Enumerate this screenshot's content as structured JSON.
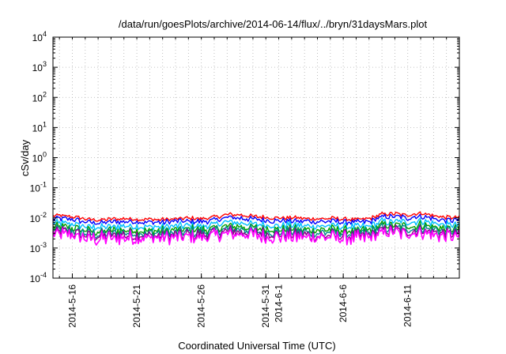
{
  "chart_data": {
    "type": "line",
    "title": "/data/run/goesPlots/archive/2014-06-14/flux/../bryn/31daysMars.plot",
    "xlabel": "Coordinated Universal Time (UTC)",
    "ylabel": "cSv/day",
    "y_scale": "log",
    "ylim": [
      0.0001,
      10000
    ],
    "y_ticks": [
      {
        "value": 0.0001,
        "base": "10",
        "exp": "-4"
      },
      {
        "value": 0.001,
        "base": "10",
        "exp": "-3"
      },
      {
        "value": 0.01,
        "base": "10",
        "exp": "-2"
      },
      {
        "value": 0.1,
        "base": "10",
        "exp": "-1"
      },
      {
        "value": 1,
        "base": "10",
        "exp": "0"
      },
      {
        "value": 10,
        "base": "10",
        "exp": "1"
      },
      {
        "value": 100,
        "base": "10",
        "exp": "2"
      },
      {
        "value": 1000,
        "base": "10",
        "exp": "3"
      },
      {
        "value": 10000,
        "base": "10",
        "exp": "4"
      }
    ],
    "xlim": [
      "2014-05-14T12:00",
      "2014-06-15T00:00"
    ],
    "x_ticks": [
      {
        "date": "2014-05-16",
        "label": "2014-5-16"
      },
      {
        "date": "2014-05-21",
        "label": "2014-5-21"
      },
      {
        "date": "2014-05-26",
        "label": "2014-5-26"
      },
      {
        "date": "2014-05-31",
        "label": "2014-5-31"
      },
      {
        "date": "2014-06-01",
        "label": "2014-6-1"
      },
      {
        "date": "2014-06-06",
        "label": "2014-6-6"
      },
      {
        "date": "2014-06-11",
        "label": "2014-6-11"
      }
    ],
    "grid": true,
    "x": [
      "2014-05-14",
      "2014-05-15",
      "2014-05-16",
      "2014-05-17",
      "2014-05-18",
      "2014-05-19",
      "2014-05-20",
      "2014-05-21",
      "2014-05-22",
      "2014-05-23",
      "2014-05-24",
      "2014-05-25",
      "2014-05-26",
      "2014-05-27",
      "2014-05-28",
      "2014-05-29",
      "2014-05-30",
      "2014-05-31",
      "2014-06-01",
      "2014-06-02",
      "2014-06-03",
      "2014-06-04",
      "2014-06-05",
      "2014-06-06",
      "2014-06-07",
      "2014-06-08",
      "2014-06-09",
      "2014-06-10",
      "2014-06-11",
      "2014-06-12",
      "2014-06-13",
      "2014-06-14"
    ],
    "series": [
      {
        "color": "#ff0000",
        "values": [
          0.011,
          0.012,
          0.011,
          0.009,
          0.0085,
          0.009,
          0.0095,
          0.0092,
          0.009,
          0.0088,
          0.0093,
          0.0098,
          0.0094,
          0.0105,
          0.0128,
          0.0124,
          0.0113,
          0.0105,
          0.0098,
          0.0102,
          0.0096,
          0.0094,
          0.0097,
          0.0091,
          0.0088,
          0.0093,
          0.0132,
          0.0136,
          0.0125,
          0.0146,
          0.0118,
          0.0102
        ]
      },
      {
        "color": "#0000ff",
        "values": [
          0.0088,
          0.0095,
          0.0088,
          0.0072,
          0.0069,
          0.0072,
          0.0076,
          0.0074,
          0.0072,
          0.0071,
          0.0075,
          0.0078,
          0.0076,
          0.0084,
          0.0103,
          0.01,
          0.0091,
          0.0084,
          0.0079,
          0.0082,
          0.0078,
          0.0076,
          0.0078,
          0.0073,
          0.0071,
          0.0075,
          0.0106,
          0.011,
          0.01,
          0.0117,
          0.0095,
          0.0082
        ]
      },
      {
        "color": "#00bfff",
        "values": [
          0.0062,
          0.0068,
          0.0062,
          0.0051,
          0.0048,
          0.0051,
          0.0054,
          0.0052,
          0.0051,
          0.005,
          0.0053,
          0.0055,
          0.0053,
          0.0059,
          0.0072,
          0.007,
          0.0064,
          0.0059,
          0.0055,
          0.0058,
          0.0054,
          0.0053,
          0.0055,
          0.0051,
          0.005,
          0.0053,
          0.0075,
          0.0077,
          0.007,
          0.0082,
          0.0067,
          0.0058
        ]
      },
      {
        "color": "#00a000",
        "values": [
          0.0045,
          0.005,
          0.0046,
          0.0038,
          0.0036,
          0.0038,
          0.004,
          0.0039,
          0.0038,
          0.0037,
          0.0039,
          0.0041,
          0.004,
          0.0044,
          0.0054,
          0.0052,
          0.0047,
          0.0044,
          0.0041,
          0.0043,
          0.004,
          0.0039,
          0.0041,
          0.0038,
          0.0037,
          0.0039,
          0.0055,
          0.0057,
          0.0052,
          0.0061,
          0.005,
          0.0043
        ]
      },
      {
        "color": "#008b8b",
        "values": [
          0.0038,
          0.0042,
          0.0038,
          0.0031,
          0.003,
          0.0031,
          0.0033,
          0.0032,
          0.0031,
          0.0031,
          0.0032,
          0.0034,
          0.0033,
          0.0036,
          0.0044,
          0.0043,
          0.0039,
          0.0036,
          0.0034,
          0.0035,
          0.0033,
          0.0032,
          0.0033,
          0.0031,
          0.003,
          0.0032,
          0.0045,
          0.0047,
          0.0043,
          0.005,
          0.0041,
          0.0035
        ]
      },
      {
        "color": "#8b008b",
        "values": [
          0.0031,
          0.0034,
          0.0031,
          0.0026,
          0.0024,
          0.0026,
          0.0027,
          0.0026,
          0.0026,
          0.0025,
          0.0026,
          0.0028,
          0.0027,
          0.003,
          0.0036,
          0.0035,
          0.0032,
          0.003,
          0.0028,
          0.0029,
          0.0027,
          0.0026,
          0.0027,
          0.0026,
          0.0025,
          0.0026,
          0.0037,
          0.0038,
          0.0035,
          0.0041,
          0.0033,
          0.0029
        ]
      },
      {
        "color": "#ff00ff",
        "values": [
          0.0026,
          0.0028,
          0.0026,
          0.0021,
          0.002,
          0.0021,
          0.0022,
          0.0022,
          0.0021,
          0.0021,
          0.0022,
          0.0023,
          0.0022,
          0.0025,
          0.003,
          0.0029,
          0.0027,
          0.0025,
          0.0023,
          0.0024,
          0.0022,
          0.0022,
          0.0023,
          0.0021,
          0.0021,
          0.0022,
          0.0031,
          0.0032,
          0.0029,
          0.0034,
          0.0028,
          0.0024
        ]
      }
    ]
  }
}
